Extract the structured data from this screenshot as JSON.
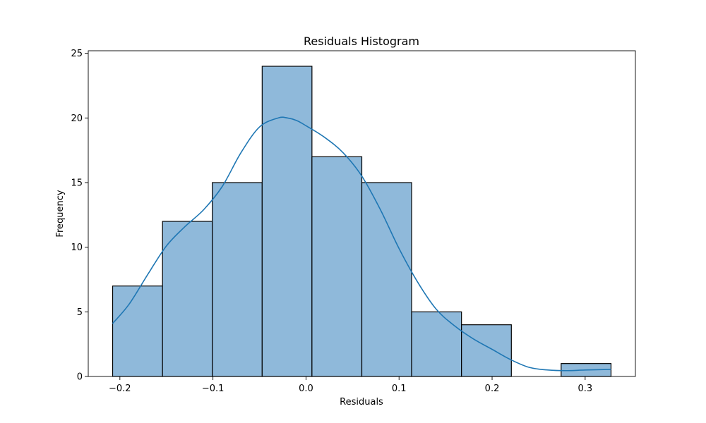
{
  "chart_data": {
    "type": "bar",
    "title": "Residuals Histogram",
    "xlabel": "Residuals",
    "ylabel": "Frequency",
    "xlim": [
      -0.234,
      0.354
    ],
    "ylim": [
      0,
      25.2
    ],
    "bins": [
      {
        "x0": -0.2078,
        "x1": -0.1542,
        "count": 7
      },
      {
        "x0": -0.1542,
        "x1": -0.1007,
        "count": 12
      },
      {
        "x0": -0.1007,
        "x1": -0.0471,
        "count": 15
      },
      {
        "x0": -0.0471,
        "x1": 0.0064,
        "count": 24
      },
      {
        "x0": 0.0064,
        "x1": 0.06,
        "count": 17
      },
      {
        "x0": 0.06,
        "x1": 0.1135,
        "count": 15
      },
      {
        "x0": 0.1135,
        "x1": 0.1671,
        "count": 5
      },
      {
        "x0": 0.1671,
        "x1": 0.2207,
        "count": 4
      },
      {
        "x0": 0.2207,
        "x1": 0.2742,
        "count": 0
      },
      {
        "x0": 0.2742,
        "x1": 0.3278,
        "count": 1
      }
    ],
    "kde": {
      "name": "",
      "x": [
        -0.2078,
        -0.19,
        -0.17,
        -0.15,
        -0.13,
        -0.11,
        -0.09,
        -0.07,
        -0.05,
        -0.03,
        -0.02,
        -0.01,
        0.0,
        0.02,
        0.04,
        0.06,
        0.08,
        0.1,
        0.12,
        0.14,
        0.16,
        0.18,
        0.2,
        0.22,
        0.24,
        0.26,
        0.28,
        0.3,
        0.3278
      ],
      "y": [
        4.1,
        5.6,
        7.9,
        10.1,
        11.6,
        12.9,
        14.7,
        17.3,
        19.3,
        20.0,
        20.0,
        19.8,
        19.4,
        18.5,
        17.3,
        15.5,
        12.9,
        9.9,
        7.3,
        5.2,
        3.9,
        2.9,
        2.1,
        1.3,
        0.7,
        0.5,
        0.45,
        0.5,
        0.55
      ]
    },
    "xticks": [
      -0.2,
      -0.1,
      0.0,
      0.1,
      0.2,
      0.3
    ],
    "xtick_labels": [
      "−0.2",
      "−0.1",
      "0.0",
      "0.1",
      "0.2",
      "0.3"
    ],
    "yticks": [
      0,
      5,
      10,
      15,
      20,
      25
    ],
    "ytick_labels": [
      "0",
      "5",
      "10",
      "15",
      "20",
      "25"
    ],
    "grid": false,
    "colors": {
      "bar_fill": "#8fb9da",
      "bar_edge": "#000000",
      "kde_line": "#1f77b4",
      "axes": "#000000"
    }
  }
}
